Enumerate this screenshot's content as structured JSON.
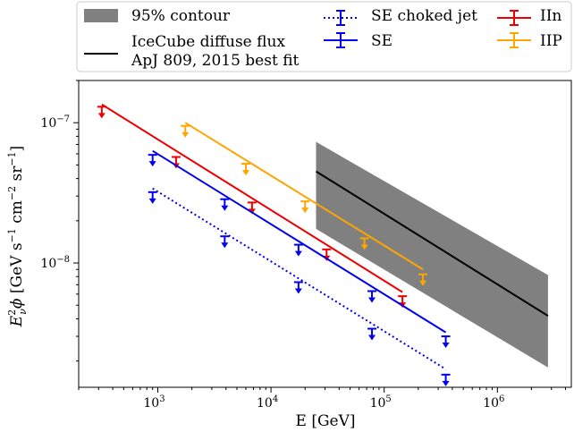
{
  "chart_data": {
    "type": "line",
    "xlabel": "E [GeV]",
    "ylabel": "E_ν²φ [GeV s⁻¹ cm⁻² sr⁻¹]",
    "xscale": "log",
    "yscale": "log",
    "xlim": [
      200,
      4500000
    ],
    "ylim": [
      1.3e-09,
      2e-07
    ],
    "xticks": [
      {
        "value": 1000,
        "base": "10",
        "exp": "3"
      },
      {
        "value": 10000,
        "base": "10",
        "exp": "4"
      },
      {
        "value": 100000,
        "base": "10",
        "exp": "5"
      },
      {
        "value": 1000000,
        "base": "10",
        "exp": "6"
      }
    ],
    "yticks": [
      {
        "value": 1e-08,
        "base": "10",
        "exp": "−8"
      },
      {
        "value": 1e-07,
        "base": "10",
        "exp": "−7"
      }
    ],
    "legend": {
      "placement": "top",
      "entries": [
        {
          "label": "95% contour",
          "kind": "patch",
          "color": "#808080"
        },
        {
          "label": "IceCube diffuse flux\nApJ 809, 2015 best fit",
          "kind": "line",
          "color": "#000000"
        },
        {
          "label": "SE choked jet",
          "kind": "errorbar-dotted",
          "color": "#0000ee"
        },
        {
          "label": "SE",
          "kind": "errorbar",
          "color": "#0000ee"
        },
        {
          "label": "IIn",
          "kind": "errorbar",
          "color": "#ee0000"
        },
        {
          "label": "IIP",
          "kind": "errorbar",
          "color": "#ffa500"
        }
      ]
    },
    "series": [
      {
        "name": "IIn",
        "color": "#ee0000",
        "style": "solid",
        "line": {
          "x": [
            320,
            145000
          ],
          "y": [
            1.35e-07,
            6.2e-09
          ]
        },
        "upper_limits": {
          "x": [
            320,
            1450,
            6800,
            31000,
            145000
          ],
          "y": [
            1.3e-07,
            5.7e-08,
            2.7e-08,
            1.25e-08,
            5.8e-09
          ]
        }
      },
      {
        "name": "IIP",
        "color": "#ffa500",
        "style": "solid",
        "line": {
          "x": [
            1750,
            220000
          ],
          "y": [
            1e-07,
            9e-09
          ]
        },
        "upper_limits": {
          "x": [
            1750,
            6000,
            20000,
            67000,
            220000
          ],
          "y": [
            9.5e-08,
            5.1e-08,
            2.75e-08,
            1.5e-08,
            8.3e-09
          ]
        }
      },
      {
        "name": "SE",
        "color": "#0000ee",
        "style": "solid",
        "line": {
          "x": [
            900,
            350000
          ],
          "y": [
            6.3e-08,
            3.2e-09
          ]
        },
        "upper_limits": {
          "x": [
            900,
            3900,
            17500,
            78000,
            350000
          ],
          "y": [
            5.9e-08,
            2.85e-08,
            1.35e-08,
            6.3e-09,
            3e-09
          ]
        }
      },
      {
        "name": "SE choked jet",
        "color": "#0000ee",
        "style": "dotted",
        "line": {
          "x": [
            900,
            350000
          ],
          "y": [
            3.4e-08,
            1.75e-09
          ]
        },
        "upper_limits": {
          "x": [
            900,
            3900,
            17500,
            78000,
            350000
          ],
          "y": [
            3.2e-08,
            1.55e-08,
            7.3e-09,
            3.4e-09,
            1.6e-09
          ]
        }
      }
    ],
    "icecube_fit": {
      "name": "IceCube diffuse flux ApJ 809, 2015 best fit",
      "color": "#000000",
      "x": [
        25000,
        2800000
      ],
      "y": [
        4.5e-08,
        4.2e-09
      ]
    },
    "contour": {
      "name": "95% contour",
      "color": "#808080",
      "upper": {
        "x": [
          25000,
          2800000
        ],
        "y": [
          7.3e-08,
          8.2e-09
        ]
      },
      "lower": {
        "x": [
          25000,
          2800000
        ],
        "y": [
          1.75e-08,
          1.8e-09
        ]
      }
    }
  }
}
